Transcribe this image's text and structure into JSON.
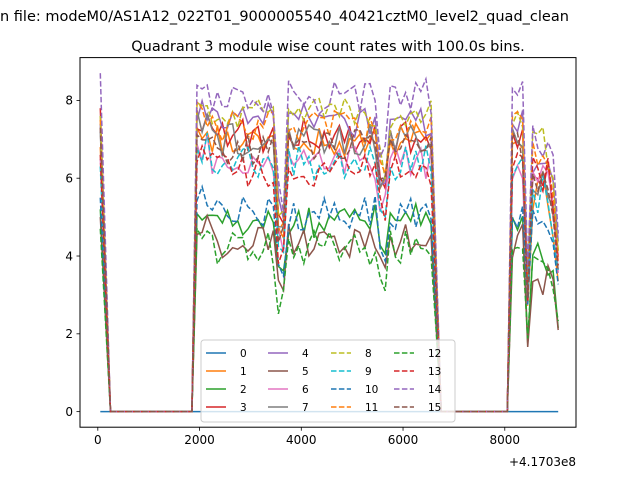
{
  "chart_data": {
    "type": "line",
    "suptitle": "n file: modeM0/AS1A12_022T01_9000005540_40421cztM0_level2_quad_clean",
    "title": "Quadrant 3 module wise count rates with 100.0s bins.",
    "xlabel": "",
    "ylabel": "",
    "x_offset_text": "+4.1703e8",
    "xlim": [
      -350,
      9400
    ],
    "ylim": [
      -0.4,
      9.1
    ],
    "xticks": [
      0,
      2000,
      4000,
      6000,
      8000
    ],
    "yticks": [
      0,
      2,
      4,
      6,
      8
    ],
    "grid": false,
    "legend_position": "lower center",
    "legend_columns": 4,
    "series": [
      {
        "name": "0",
        "color": "#1f77b4",
        "dash": "solid",
        "level": 0.0,
        "early": 0.0,
        "late": 0.0
      },
      {
        "name": "1",
        "color": "#ff7f0e",
        "dash": "solid",
        "level": 7.0,
        "early": 6.8,
        "late": 5.6
      },
      {
        "name": "2",
        "color": "#2ca02c",
        "dash": "solid",
        "level": 4.9,
        "early": 5.2,
        "late": 3.8
      },
      {
        "name": "3",
        "color": "#d62728",
        "dash": "solid",
        "level": 7.1,
        "early": 7.8,
        "late": 6.2
      },
      {
        "name": "4",
        "color": "#9467bd",
        "dash": "solid",
        "level": 7.5,
        "early": 7.4,
        "late": 6.5
      },
      {
        "name": "5",
        "color": "#8c564b",
        "dash": "solid",
        "level": 4.4,
        "early": 5.0,
        "late": 3.5
      },
      {
        "name": "6",
        "color": "#e377c2",
        "dash": "solid",
        "level": 6.4,
        "early": 6.5,
        "late": 5.8
      },
      {
        "name": "7",
        "color": "#7f7f7f",
        "dash": "solid",
        "level": 7.0,
        "early": 7.2,
        "late": 6.0
      },
      {
        "name": "8",
        "color": "#bcbd22",
        "dash": "dashed",
        "level": 7.7,
        "early": 7.6,
        "late": 6.8
      },
      {
        "name": "9",
        "color": "#17becf",
        "dash": "dashed",
        "level": 6.4,
        "early": 6.3,
        "late": 5.6
      },
      {
        "name": "10",
        "color": "#1f77b4",
        "dash": "dashed",
        "level": 5.1,
        "early": 5.5,
        "late": 5.0
      },
      {
        "name": "11",
        "color": "#ff7f0e",
        "dash": "dashed",
        "level": 7.3,
        "early": 7.5,
        "late": 6.4
      },
      {
        "name": "12",
        "color": "#2ca02c",
        "dash": "dashed",
        "level": 4.2,
        "early": 4.7,
        "late": 3.9
      },
      {
        "name": "13",
        "color": "#d62728",
        "dash": "dashed",
        "level": 6.2,
        "early": 6.6,
        "late": 6.0
      },
      {
        "name": "14",
        "color": "#9467bd",
        "dash": "dashed",
        "level": 8.1,
        "early": 8.7,
        "late": 7.0
      },
      {
        "name": "15",
        "color": "#8c564b",
        "dash": "dashed",
        "level": 6.8,
        "early": 7.3,
        "late": 5.9
      }
    ],
    "segments": [
      {
        "start": 0,
        "end": 250,
        "kind": "decay"
      },
      {
        "start": 250,
        "end": 1900,
        "kind": "zero"
      },
      {
        "start": 1900,
        "end": 2000,
        "kind": "rise"
      },
      {
        "start": 2000,
        "end": 6600,
        "kind": "active"
      },
      {
        "start": 6600,
        "end": 6750,
        "kind": "fall"
      },
      {
        "start": 6750,
        "end": 8100,
        "kind": "zero"
      },
      {
        "start": 8100,
        "end": 8400,
        "kind": "rise"
      },
      {
        "start": 8400,
        "end": 9050,
        "kind": "active_late"
      }
    ],
    "dips": [
      {
        "x": 3600,
        "depth": 2.2
      },
      {
        "x": 5600,
        "depth": 1.2
      }
    ]
  }
}
